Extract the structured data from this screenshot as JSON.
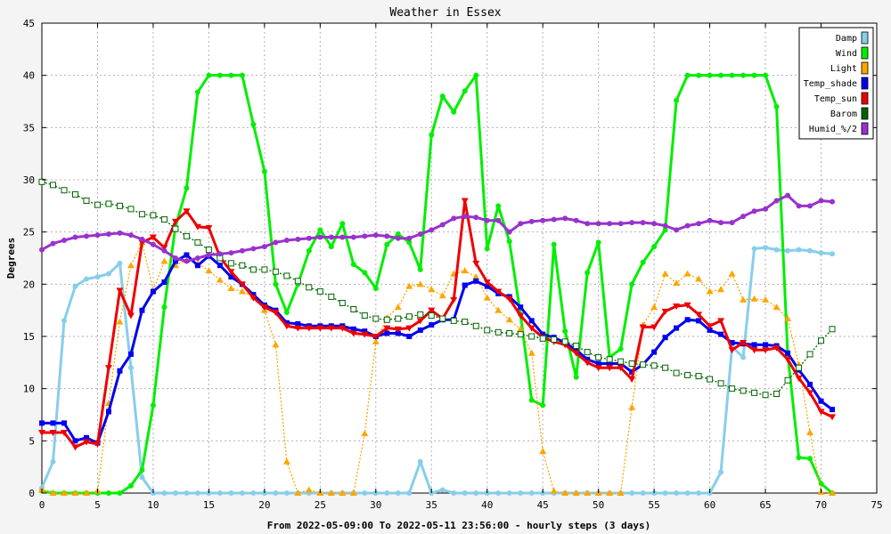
{
  "chart_data": {
    "type": "line",
    "title": "Weather in Essex",
    "xlabel": "From 2022-05-09:00 To 2022-05-11 23:56:00 - hourly steps (3 days)",
    "ylabel": "Degrees",
    "xlim": [
      0,
      75
    ],
    "ylim": [
      0,
      45
    ],
    "xticks": [
      0,
      5,
      10,
      15,
      20,
      25,
      30,
      35,
      40,
      45,
      50,
      55,
      60,
      65,
      70,
      75
    ],
    "yticks": [
      0,
      5,
      10,
      15,
      20,
      25,
      30,
      35,
      40,
      45
    ],
    "grid": true,
    "legend_position": "top-right",
    "series": [
      {
        "name": "Damp",
        "color": "#87ceeb",
        "style": "solid",
        "marker": "circle",
        "values": [
          0.5,
          3,
          16.5,
          19.8,
          20.5,
          20.7,
          21,
          22,
          12,
          1.5,
          0,
          0,
          0,
          0,
          0,
          0,
          0,
          0,
          0,
          0,
          0,
          0,
          0,
          0,
          0,
          0,
          0,
          0,
          0,
          0,
          0,
          0,
          0,
          0,
          3,
          0,
          0.3,
          0,
          0,
          0,
          0,
          0,
          0,
          0,
          0,
          0,
          0,
          0,
          0,
          0,
          0,
          0,
          0,
          0,
          0,
          0,
          0,
          0,
          0,
          0,
          0,
          2,
          14,
          13,
          23.4,
          23.5,
          23.3,
          23.2,
          23.3,
          23.2,
          23,
          22.9
        ]
      },
      {
        "name": "Wind",
        "color": "#00ee00",
        "style": "solid",
        "marker": "circle",
        "values": [
          0.2,
          0,
          0,
          0,
          0,
          0,
          0,
          0,
          0.7,
          2.2,
          8.4,
          17.8,
          25.5,
          29.2,
          38.4,
          40,
          40,
          40,
          40,
          35.3,
          30.8,
          20,
          17.3,
          20,
          23.2,
          25.2,
          23.6,
          25.8,
          21.9,
          21.1,
          19.6,
          23.8,
          24.8,
          24,
          21.4,
          34.3,
          38,
          36.5,
          38.5,
          40,
          23.4,
          27.5,
          24.1,
          17.1,
          8.9,
          8.4,
          23.8,
          15.5,
          11.1,
          21.1,
          24,
          13,
          13.8,
          20,
          22.1,
          23.6,
          25.2,
          37.6,
          40,
          40,
          40,
          40,
          40,
          40,
          40,
          40,
          37,
          13.3,
          3.4,
          3.3,
          0.9,
          0
        ]
      },
      {
        "name": "Light",
        "color": "#ffa500",
        "style": "dotted",
        "marker": "triangle",
        "values": [
          0.3,
          0,
          0,
          0,
          0,
          0.2,
          8.6,
          16.4,
          21.8,
          24,
          19.4,
          22.2,
          21.8,
          22.3,
          22,
          21.3,
          20.4,
          19.6,
          19.3,
          18.8,
          17.5,
          14.2,
          3,
          0,
          0.3,
          0,
          0,
          0,
          0,
          5.7,
          14.5,
          16.8,
          17.8,
          19.8,
          20,
          19.5,
          18.9,
          21,
          21.3,
          20.7,
          18.7,
          17.5,
          16.6,
          15.7,
          13.4,
          4,
          0.2,
          0,
          0,
          0,
          0,
          0,
          0,
          8.2,
          16.1,
          17.8,
          21,
          20.1,
          21,
          20.5,
          19.3,
          19.5,
          21,
          18.5,
          18.6,
          18.5,
          17.8,
          16.7,
          12.3,
          5.8,
          0.1,
          0
        ]
      },
      {
        "name": "Temp_shade",
        "color": "#0000ee",
        "style": "solid",
        "marker": "square",
        "values": [
          6.7,
          6.7,
          6.7,
          5,
          5.3,
          4.8,
          7.8,
          11.7,
          13.3,
          17.5,
          19.3,
          20.2,
          22.2,
          22.8,
          21.8,
          22.7,
          21.8,
          20.7,
          20,
          19,
          18,
          17.5,
          16.3,
          16.2,
          16,
          16,
          16,
          16,
          15.7,
          15.5,
          15,
          15.3,
          15.3,
          15,
          15.6,
          16.1,
          16.6,
          16.6,
          19.9,
          20.3,
          19.8,
          19.1,
          18.8,
          17.8,
          16.5,
          15.2,
          14.9,
          14.4,
          13.7,
          12.8,
          12.4,
          12.4,
          12.4,
          11.6,
          12.3,
          13.5,
          14.9,
          15.8,
          16.6,
          16.5,
          15.6,
          15.2,
          14.4,
          14.3,
          14.2,
          14.2,
          14.1,
          13.4,
          11.8,
          10.4,
          8.8,
          8
        ]
      },
      {
        "name": "Temp_sun",
        "color": "#ee0000",
        "style": "solid",
        "marker": "triangle-down",
        "values": [
          5.8,
          5.8,
          5.8,
          4.4,
          4.9,
          4.7,
          12,
          19.4,
          17,
          24,
          24.5,
          23.5,
          26,
          27,
          25.5,
          25.4,
          22.6,
          21.2,
          20,
          18.7,
          17.8,
          17.3,
          16,
          15.8,
          15.8,
          15.8,
          15.8,
          15.8,
          15.3,
          15.2,
          15,
          15.8,
          15.7,
          15.8,
          16.5,
          17.5,
          16.7,
          18.5,
          28,
          22,
          20.2,
          19.3,
          18.6,
          17,
          15.8,
          14.9,
          14.5,
          14.2,
          13.4,
          12.5,
          12,
          12,
          12,
          10.9,
          15.9,
          15.9,
          17.4,
          17.9,
          18,
          17.1,
          16,
          16.5,
          13.7,
          14.4,
          13.7,
          13.7,
          13.9,
          12.8,
          11,
          9.6,
          7.8,
          7.3
        ]
      },
      {
        "name": "Barom",
        "color": "#006400",
        "style": "dotted",
        "marker": "hollow-square",
        "values": [
          29.8,
          29.5,
          29,
          28.6,
          28,
          27.6,
          27.7,
          27.5,
          27.2,
          26.7,
          26.6,
          26.2,
          25.3,
          24.6,
          24,
          23.3,
          22.5,
          22,
          21.8,
          21.4,
          21.4,
          21.2,
          20.8,
          20.3,
          19.7,
          19.3,
          18.8,
          18.2,
          17.6,
          17,
          16.7,
          16.6,
          16.7,
          16.9,
          17.1,
          17,
          16.7,
          16.5,
          16.4,
          16,
          15.6,
          15.4,
          15.3,
          15.2,
          15,
          14.8,
          14.7,
          14.5,
          14.1,
          13.5,
          13,
          12.8,
          12.6,
          12.4,
          12.3,
          12.2,
          12,
          11.5,
          11.3,
          11.2,
          10.9,
          10.5,
          10,
          9.8,
          9.6,
          9.4,
          9.5,
          10.8,
          12,
          13.3,
          14.6,
          15.7
        ]
      },
      {
        "name": "Humid_%/2",
        "color": "#9932cc",
        "style": "solid",
        "marker": "circle",
        "values": [
          23.3,
          23.9,
          24.2,
          24.5,
          24.6,
          24.7,
          24.8,
          24.9,
          24.7,
          24.3,
          23.8,
          23.2,
          22.5,
          22.2,
          22.5,
          22.8,
          22.9,
          23,
          23.2,
          23.4,
          23.6,
          24,
          24.2,
          24.3,
          24.4,
          24.5,
          24.5,
          24.5,
          24.5,
          24.6,
          24.7,
          24.6,
          24.4,
          24.4,
          24.8,
          25.2,
          25.7,
          26.3,
          26.5,
          26.4,
          26.1,
          26.1,
          25,
          25.8,
          26,
          26.1,
          26.2,
          26.3,
          26.1,
          25.8,
          25.8,
          25.8,
          25.8,
          25.9,
          25.9,
          25.8,
          25.6,
          25.2,
          25.6,
          25.8,
          26.1,
          25.9,
          25.9,
          26.5,
          27,
          27.2,
          28,
          28.5,
          27.5,
          27.5,
          28,
          27.9
        ]
      }
    ]
  }
}
